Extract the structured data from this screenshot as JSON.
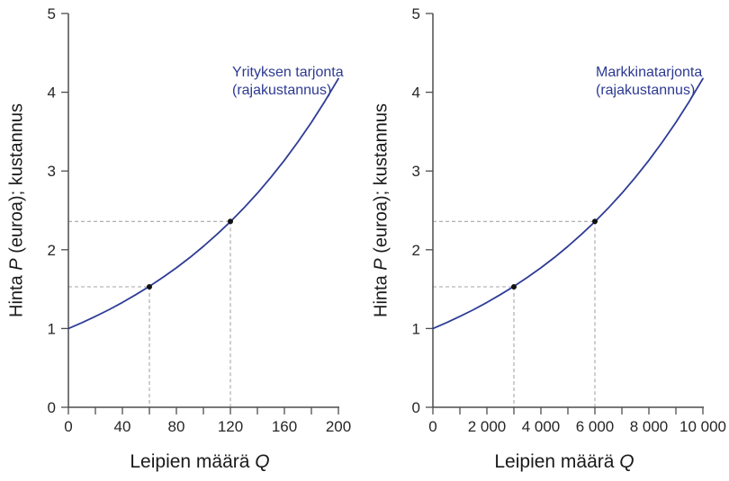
{
  "colors": {
    "background": "#ffffff",
    "curve": "#2e3c96",
    "curve_label": "#2d3a92",
    "axis": "#4d4d4d",
    "tick_label": "#262626",
    "axis_title": "#1a1a1a",
    "guide": "#a6a6a6",
    "point": "#111111"
  },
  "chart_data": [
    {
      "type": "line",
      "id": "firm-supply",
      "curve_label_lines": [
        "Yrityksen tarjonta",
        "(rajakustannus)"
      ],
      "xlabel_prefix": "Leipien määrä ",
      "xlabel_italic": "Q",
      "ylabel_prefix": "Hinta ",
      "ylabel_italic": "P",
      "ylabel_suffix": " (euroa); kustannus",
      "xlim": [
        0,
        200
      ],
      "ylim": [
        0,
        5
      ],
      "x_major_ticks": [
        0,
        40,
        80,
        120,
        160,
        200
      ],
      "x_major_labels": [
        "0",
        "40",
        "80",
        "120",
        "160",
        "200"
      ],
      "x_minor_ticks": [
        20,
        60,
        100,
        140,
        180
      ],
      "y_ticks": [
        0,
        1,
        2,
        3,
        4,
        5
      ],
      "y_tick_labels": [
        "0",
        "1",
        "2",
        "3",
        "4",
        "5"
      ],
      "grid": "off",
      "legend": "none",
      "series": [
        {
          "name": "Yrityksen tarjonta (rajakustannus)",
          "points": [
            [
              0,
              1.0
            ],
            [
              10,
              1.074
            ],
            [
              20,
              1.154
            ],
            [
              30,
              1.239
            ],
            [
              40,
              1.331
            ],
            [
              50,
              1.43
            ],
            [
              60,
              1.535
            ],
            [
              70,
              1.649
            ],
            [
              80,
              1.771
            ],
            [
              90,
              1.902
            ],
            [
              100,
              2.043
            ],
            [
              110,
              2.195
            ],
            [
              120,
              2.356
            ],
            [
              130,
              2.531
            ],
            [
              140,
              2.718
            ],
            [
              150,
              2.92
            ],
            [
              160,
              3.136
            ],
            [
              170,
              3.369
            ],
            [
              180,
              3.618
            ],
            [
              190,
              3.886
            ],
            [
              200,
              4.174
            ]
          ]
        }
      ],
      "marked_points": [
        {
          "q": 60,
          "p": 1.53
        },
        {
          "q": 120,
          "p": 2.36
        }
      ]
    },
    {
      "type": "line",
      "id": "market-supply",
      "curve_label_lines": [
        "Markkinatarjonta",
        "(rajakustannus)"
      ],
      "xlabel_prefix": "Leipien määrä ",
      "xlabel_italic": "Q",
      "ylabel_prefix": "Hinta ",
      "ylabel_italic": "P",
      "ylabel_suffix": " (euroa); kustannus",
      "xlim": [
        0,
        10000
      ],
      "ylim": [
        0,
        5
      ],
      "x_major_ticks": [
        0,
        2000,
        4000,
        6000,
        8000,
        10000
      ],
      "x_major_labels": [
        "0",
        "2 000",
        "4 000",
        "6 000",
        "8 000",
        "10 000"
      ],
      "x_minor_ticks": [
        1000,
        3000,
        5000,
        7000,
        9000
      ],
      "y_ticks": [
        0,
        1,
        2,
        3,
        4,
        5
      ],
      "y_tick_labels": [
        "0",
        "1",
        "2",
        "3",
        "4",
        "5"
      ],
      "grid": "off",
      "legend": "none",
      "series": [
        {
          "name": "Markkinatarjonta (rajakustannus)",
          "points": [
            [
              0,
              1.0
            ],
            [
              500,
              1.074
            ],
            [
              1000,
              1.154
            ],
            [
              1500,
              1.239
            ],
            [
              2000,
              1.331
            ],
            [
              2500,
              1.43
            ],
            [
              3000,
              1.535
            ],
            [
              3500,
              1.649
            ],
            [
              4000,
              1.771
            ],
            [
              4500,
              1.902
            ],
            [
              5000,
              2.043
            ],
            [
              5500,
              2.195
            ],
            [
              6000,
              2.356
            ],
            [
              6500,
              2.531
            ],
            [
              7000,
              2.718
            ],
            [
              7500,
              2.92
            ],
            [
              8000,
              3.136
            ],
            [
              8500,
              3.369
            ],
            [
              9000,
              3.618
            ],
            [
              9500,
              3.886
            ],
            [
              10000,
              4.174
            ]
          ]
        }
      ],
      "marked_points": [
        {
          "q": 3000,
          "p": 1.53
        },
        {
          "q": 6000,
          "p": 2.36
        }
      ]
    }
  ]
}
